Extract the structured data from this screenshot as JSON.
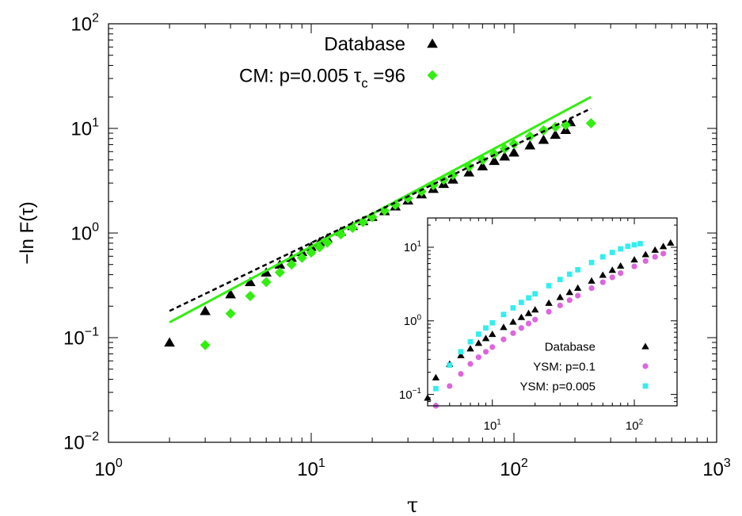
{
  "chart_data": [
    {
      "type": "scatter",
      "xscale": "log",
      "yscale": "log",
      "xlim": [
        1,
        1000
      ],
      "ylim": [
        0.01,
        100
      ],
      "xlabel": "τ",
      "ylabel": "−ln F(τ)",
      "xticks": [
        {
          "value": 1,
          "base": "10",
          "exp": "0"
        },
        {
          "value": 10,
          "base": "10",
          "exp": "1"
        },
        {
          "value": 100,
          "base": "10",
          "exp": "2"
        },
        {
          "value": 1000,
          "base": "10",
          "exp": "3"
        }
      ],
      "yticks": [
        {
          "value": 0.01,
          "base": "10",
          "exp": "−2"
        },
        {
          "value": 0.1,
          "base": "10",
          "exp": "−1"
        },
        {
          "value": 1,
          "base": "10",
          "exp": "0"
        },
        {
          "value": 10,
          "base": "10",
          "exp": "1"
        },
        {
          "value": 100,
          "base": "10",
          "exp": "2"
        }
      ],
      "legend_position": "top-right",
      "legend": [
        {
          "text": "Database",
          "series": "Database"
        },
        {
          "text": "CM: p=0.005 τ",
          "sub": "c",
          "tail": " =96",
          "series": "CM"
        }
      ],
      "series": [
        {
          "name": "Database",
          "marker": "triangle",
          "color": "#000000",
          "points": [
            [
              2,
              0.09
            ],
            [
              3,
              0.18
            ],
            [
              4,
              0.26
            ],
            [
              5,
              0.34
            ],
            [
              6,
              0.42
            ],
            [
              7,
              0.5
            ],
            [
              8,
              0.58
            ],
            [
              9,
              0.66
            ],
            [
              10,
              0.74
            ],
            [
              11,
              0.82
            ],
            [
              12,
              0.89
            ],
            [
              14,
              1.03
            ],
            [
              16,
              1.17
            ],
            [
              18,
              1.3
            ],
            [
              20,
              1.43
            ],
            [
              23,
              1.62
            ],
            [
              26,
              1.8
            ],
            [
              30,
              2.05
            ],
            [
              35,
              2.35
            ],
            [
              40,
              2.65
            ],
            [
              45,
              2.95
            ],
            [
              50,
              3.25
            ],
            [
              60,
              3.8
            ],
            [
              70,
              4.35
            ],
            [
              80,
              4.9
            ],
            [
              90,
              5.4
            ],
            [
              100,
              5.9
            ],
            [
              120,
              6.9
            ],
            [
              140,
              7.8
            ],
            [
              160,
              8.7
            ],
            [
              180,
              9.7
            ],
            [
              190,
              11.5
            ]
          ]
        },
        {
          "name": "CM",
          "marker": "diamond",
          "color": "#33ee11",
          "points": [
            [
              3,
              0.085
            ],
            [
              4,
              0.17
            ],
            [
              5,
              0.25
            ],
            [
              6,
              0.34
            ],
            [
              7,
              0.42
            ],
            [
              8,
              0.5
            ],
            [
              9,
              0.58
            ],
            [
              10,
              0.65
            ],
            [
              11,
              0.73
            ],
            [
              12,
              0.81
            ],
            [
              14,
              0.97
            ],
            [
              16,
              1.12
            ],
            [
              18,
              1.27
            ],
            [
              20,
              1.42
            ],
            [
              23,
              1.64
            ],
            [
              26,
              1.86
            ],
            [
              30,
              2.15
            ],
            [
              35,
              2.5
            ],
            [
              40,
              2.87
            ],
            [
              45,
              3.23
            ],
            [
              50,
              3.6
            ],
            [
              60,
              4.3
            ],
            [
              70,
              5.0
            ],
            [
              80,
              5.7
            ],
            [
              90,
              6.4
            ],
            [
              100,
              7.1
            ],
            [
              120,
              8.4
            ],
            [
              140,
              9.6
            ],
            [
              160,
              10.3
            ],
            [
              180,
              10.8
            ],
            [
              240,
              11.2
            ]
          ]
        },
        {
          "name": "fit-solid",
          "style": "solid-line",
          "color": "#33ee11",
          "points": [
            [
              2,
              0.14
            ],
            [
              240,
              20
            ]
          ]
        },
        {
          "name": "fit-dashed",
          "style": "dashed-line",
          "color": "#000000",
          "points": [
            [
              2,
              0.18
            ],
            [
              240,
              15.5
            ]
          ]
        }
      ]
    },
    {
      "type": "scatter",
      "role": "inset",
      "xscale": "log",
      "yscale": "log",
      "xlim": [
        3.5,
        200
      ],
      "ylim": [
        0.07,
        25
      ],
      "xticks": [
        {
          "value": 10,
          "base": "10",
          "exp": "1"
        },
        {
          "value": 100,
          "base": "10",
          "exp": "2"
        }
      ],
      "yticks": [
        {
          "value": 0.1,
          "base": "10",
          "exp": "−1"
        },
        {
          "value": 1,
          "base": "10",
          "exp": "0"
        },
        {
          "value": 10,
          "base": "10",
          "exp": "1"
        }
      ],
      "legend_position": "bottom-right",
      "legend": [
        {
          "text": "Database",
          "series": "Database"
        },
        {
          "text": "YSM: p=0.1",
          "series": "YSM: p=0.1"
        },
        {
          "text": "YSM: p=0.005",
          "series": "YSM: p=0.005"
        }
      ],
      "series": [
        {
          "name": "Database",
          "marker": "triangle",
          "color": "#000000",
          "points": [
            [
              3.5,
              0.09
            ],
            [
              4,
              0.17
            ],
            [
              5,
              0.26
            ],
            [
              6,
              0.34
            ],
            [
              7,
              0.42
            ],
            [
              8,
              0.5
            ],
            [
              9,
              0.58
            ],
            [
              10,
              0.66
            ],
            [
              12,
              0.82
            ],
            [
              14,
              0.97
            ],
            [
              16,
              1.12
            ],
            [
              18,
              1.27
            ],
            [
              20,
              1.42
            ],
            [
              25,
              1.75
            ],
            [
              30,
              2.1
            ],
            [
              35,
              2.45
            ],
            [
              40,
              2.8
            ],
            [
              50,
              3.5
            ],
            [
              60,
              4.2
            ],
            [
              70,
              4.9
            ],
            [
              80,
              5.6
            ],
            [
              100,
              6.8
            ],
            [
              120,
              8.0
            ],
            [
              140,
              9.2
            ],
            [
              160,
              10.3
            ],
            [
              180,
              11.5
            ]
          ]
        },
        {
          "name": "YSM: p=0.1",
          "marker": "circle",
          "color": "#dd66dd",
          "points": [
            [
              4,
              0.07
            ],
            [
              5,
              0.13
            ],
            [
              6,
              0.19
            ],
            [
              7,
              0.26
            ],
            [
              8,
              0.32
            ],
            [
              9,
              0.38
            ],
            [
              10,
              0.44
            ],
            [
              12,
              0.56
            ],
            [
              14,
              0.68
            ],
            [
              16,
              0.8
            ],
            [
              18,
              0.92
            ],
            [
              20,
              1.04
            ],
            [
              25,
              1.33
            ],
            [
              30,
              1.62
            ],
            [
              35,
              1.91
            ],
            [
              40,
              2.2
            ],
            [
              50,
              2.78
            ],
            [
              60,
              3.35
            ],
            [
              70,
              3.9
            ],
            [
              80,
              4.45
            ],
            [
              100,
              5.5
            ],
            [
              120,
              6.5
            ],
            [
              140,
              7.4
            ],
            [
              160,
              8.2
            ]
          ]
        },
        {
          "name": "YSM: p=0.005",
          "marker": "square",
          "color": "#33eeee",
          "points": [
            [
              4,
              0.12
            ],
            [
              5,
              0.25
            ],
            [
              6,
              0.38
            ],
            [
              7,
              0.52
            ],
            [
              8,
              0.66
            ],
            [
              9,
              0.8
            ],
            [
              10,
              0.94
            ],
            [
              12,
              1.22
            ],
            [
              14,
              1.5
            ],
            [
              16,
              1.78
            ],
            [
              18,
              2.05
            ],
            [
              20,
              2.33
            ],
            [
              25,
              3.0
            ],
            [
              30,
              3.65
            ],
            [
              35,
              4.3
            ],
            [
              40,
              4.95
            ],
            [
              50,
              6.2
            ],
            [
              60,
              7.4
            ],
            [
              70,
              8.5
            ],
            [
              80,
              9.5
            ],
            [
              90,
              10.3
            ],
            [
              100,
              10.8
            ],
            [
              110,
              11.2
            ]
          ]
        }
      ]
    }
  ]
}
